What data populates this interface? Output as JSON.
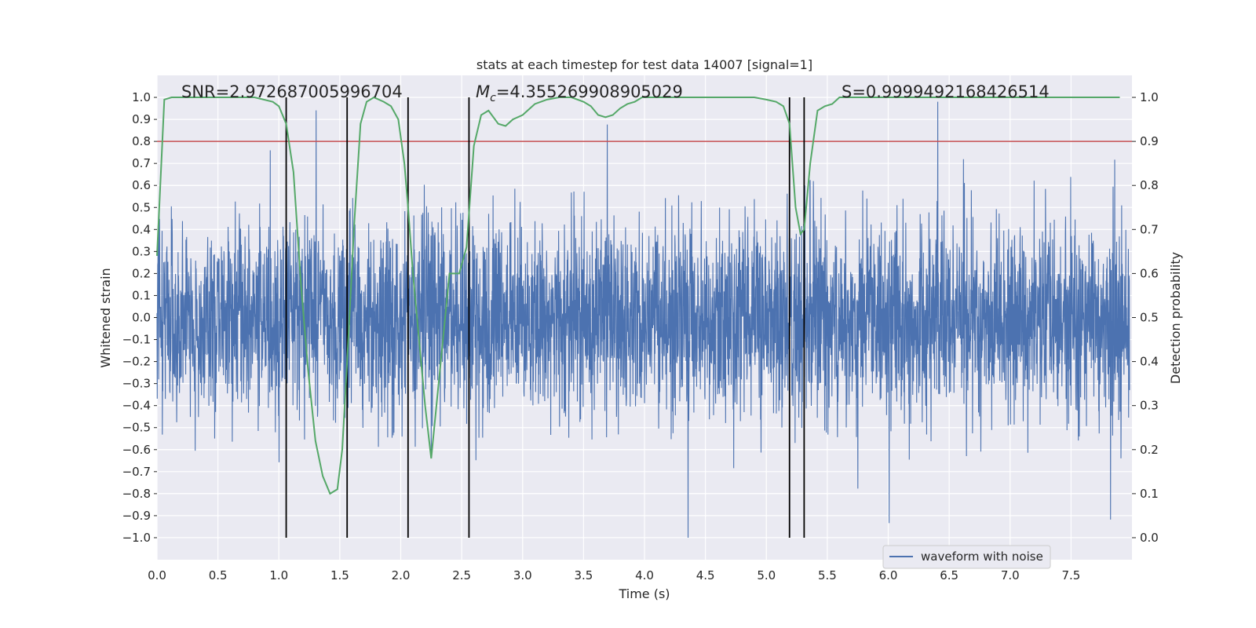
{
  "chart_data": {
    "type": "line",
    "title": "stats at each timestep for test data 14007 [signal=1]",
    "xlabel": "Time (s)",
    "ylabel_left": "Whitened strain",
    "ylabel_right": "Detection probability",
    "xlim": [
      0.0,
      8.0
    ],
    "ylim_left": [
      -1.1,
      1.1
    ],
    "ylim_right": [
      -0.05,
      1.05
    ],
    "x_ticks": [
      "0.0",
      "0.5",
      "1.0",
      "1.5",
      "2.0",
      "2.5",
      "3.0",
      "3.5",
      "4.0",
      "4.5",
      "5.0",
      "5.5",
      "6.0",
      "6.5",
      "7.0",
      "7.5"
    ],
    "x_tick_values": [
      0.0,
      0.5,
      1.0,
      1.5,
      2.0,
      2.5,
      3.0,
      3.5,
      4.0,
      4.5,
      5.0,
      5.5,
      6.0,
      6.5,
      7.0,
      7.5
    ],
    "y_left_ticks": [
      "1.0",
      "0.9",
      "0.8",
      "0.7",
      "0.6",
      "0.5",
      "0.4",
      "0.3",
      "0.2",
      "0.1",
      "0.0",
      "−0.1",
      "−0.2",
      "−0.3",
      "−0.4",
      "−0.5",
      "−0.6",
      "−0.7",
      "−0.8",
      "−0.9",
      "−1.0"
    ],
    "y_left_tick_values": [
      1.0,
      0.9,
      0.8,
      0.7,
      0.6,
      0.5,
      0.4,
      0.3,
      0.2,
      0.1,
      0.0,
      -0.1,
      -0.2,
      -0.3,
      -0.4,
      -0.5,
      -0.6,
      -0.7,
      -0.8,
      -0.9,
      -1.0
    ],
    "y_right_ticks": [
      "1.0",
      "0.9",
      "0.8",
      "0.7",
      "0.6",
      "0.5",
      "0.4",
      "0.3",
      "0.2",
      "0.1",
      "0.0"
    ],
    "y_right_tick_values": [
      1.0,
      0.9,
      0.8,
      0.7,
      0.6,
      0.5,
      0.4,
      0.3,
      0.2,
      0.1,
      0.0
    ],
    "annotations": {
      "snr": "SNR=2.972687005996704",
      "mc_symbol": "M",
      "mc_sub": "c",
      "mc_value": "=4.355269908905029",
      "s": "S=0.9999492168426514"
    },
    "threshold": {
      "axis": "right",
      "value": 0.9,
      "color": "#c44e52"
    },
    "vertical_lines": [
      1.06,
      1.56,
      2.06,
      2.56,
      5.19,
      5.31
    ],
    "vertical_line_range": [
      -1.0,
      1.0
    ],
    "legend": {
      "label": "waveform with noise",
      "location": "lower right"
    },
    "series": [
      {
        "name": "waveform with noise",
        "axis": "left",
        "color": "#4c72b0",
        "kind": "noise",
        "t_start": 0.0,
        "t_end": 7.98,
        "typical_amplitude": 0.3,
        "peak_positive": 0.98,
        "peak_negative": -1.0
      },
      {
        "name": "detection probability",
        "axis": "right",
        "color": "#55a868",
        "t": [
          0.0,
          0.06,
          0.12,
          0.2,
          0.5,
          0.8,
          0.95,
          1.0,
          1.06,
          1.12,
          1.18,
          1.24,
          1.3,
          1.36,
          1.42,
          1.48,
          1.52,
          1.56,
          1.62,
          1.67,
          1.72,
          1.78,
          1.86,
          1.92,
          1.98,
          2.03,
          2.06,
          2.1,
          2.15,
          2.2,
          2.25,
          2.3,
          2.4,
          2.48,
          2.54,
          2.6,
          2.66,
          2.72,
          2.8,
          2.86,
          2.92,
          3.0,
          3.1,
          3.2,
          3.3,
          3.4,
          3.5,
          3.56,
          3.62,
          3.68,
          3.74,
          3.8,
          3.86,
          3.92,
          3.98,
          4.1,
          4.3,
          4.6,
          4.9,
          5.0,
          5.08,
          5.14,
          5.19,
          5.24,
          5.28,
          5.31,
          5.36,
          5.42,
          5.48,
          5.54,
          5.6,
          5.7,
          6.0,
          7.0,
          7.9
        ],
        "p": [
          0.64,
          0.995,
          1.0,
          1.0,
          1.0,
          1.0,
          0.99,
          0.98,
          0.94,
          0.83,
          0.58,
          0.38,
          0.22,
          0.14,
          0.1,
          0.11,
          0.2,
          0.4,
          0.72,
          0.94,
          0.99,
          1.0,
          0.99,
          0.98,
          0.95,
          0.85,
          0.75,
          0.6,
          0.45,
          0.3,
          0.18,
          0.32,
          0.6,
          0.6,
          0.66,
          0.89,
          0.96,
          0.97,
          0.94,
          0.935,
          0.95,
          0.96,
          0.985,
          0.995,
          1.0,
          1.0,
          0.99,
          0.98,
          0.96,
          0.955,
          0.96,
          0.975,
          0.985,
          0.99,
          1.0,
          1.0,
          1.0,
          1.0,
          1.0,
          0.995,
          0.99,
          0.98,
          0.94,
          0.75,
          0.69,
          0.7,
          0.85,
          0.97,
          0.98,
          0.985,
          1.0,
          1.0,
          1.0,
          1.0,
          1.0
        ]
      }
    ]
  }
}
